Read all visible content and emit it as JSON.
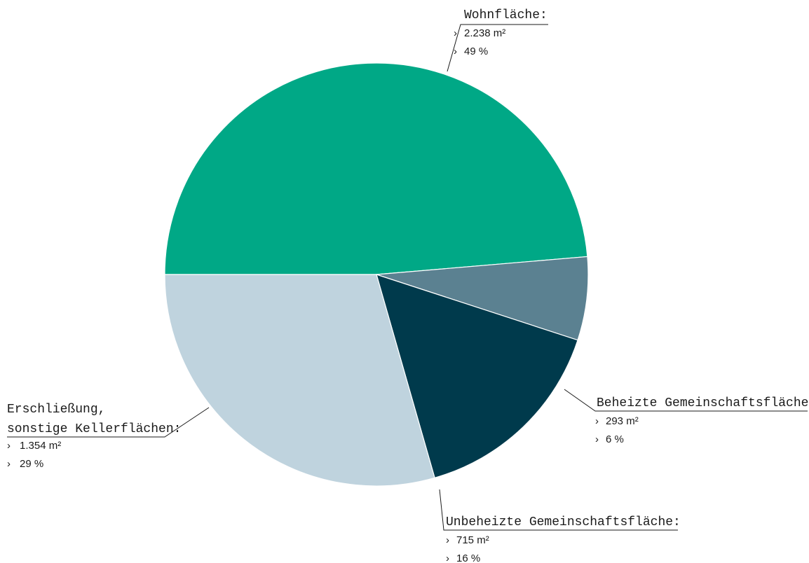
{
  "chart_data": {
    "type": "pie",
    "title": "",
    "unit": "m²",
    "slices": [
      {
        "key": "wohnflaeche",
        "label": [
          "Wohnfläche:"
        ],
        "value": 2238,
        "value_text": "2.238 m²",
        "percent_text": "49 %",
        "color": "#00a886"
      },
      {
        "key": "beheizte",
        "label": [
          "Beheizte Gemeinschaftsfläche:"
        ],
        "value": 293,
        "value_text": "293 m²",
        "percent_text": "6 %",
        "color": "#5b8191"
      },
      {
        "key": "unbeheizte",
        "label": [
          "Unbeheizte Gemeinschaftsfläche:"
        ],
        "value": 715,
        "value_text": "715 m²",
        "percent_text": "16 %",
        "color": "#003a4c"
      },
      {
        "key": "erschliessung",
        "label": [
          "Erschließung,",
          "sonstige Kellerflächen:"
        ],
        "value": 1354,
        "value_text": "1.354 m²",
        "percent_text": "29 %",
        "color": "#bfd3de"
      }
    ],
    "bullet": "›"
  }
}
